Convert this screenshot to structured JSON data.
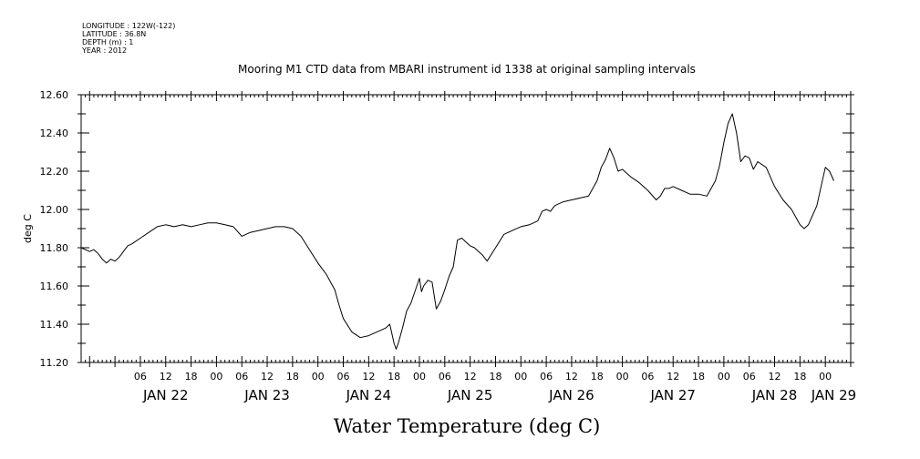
{
  "header": {
    "meta_lines": [
      "LONGITUDE : 122W(-122)",
      "LATITUDE : 36.8N",
      "DEPTH (m) : 1",
      "YEAR : 2012"
    ],
    "title": "Mooring M1 CTD data from MBARI instrument id 1338 at original sampling intervals"
  },
  "chart_data": {
    "type": "line",
    "title": "Water Temperature (deg C)",
    "subtitle": "Mooring M1 CTD data from MBARI instrument id 1338 at original sampling intervals",
    "xlabel": "",
    "ylabel": "deg C",
    "ylim": [
      11.2,
      12.6
    ],
    "yticks": [
      11.2,
      11.4,
      11.6,
      11.8,
      12.0,
      12.2,
      12.4,
      12.6
    ],
    "ytick_labels": [
      "11.20",
      "11.40",
      "11.60",
      "11.80",
      "12.00",
      "12.20",
      "12.40",
      "12.60"
    ],
    "x_unit": "hours since JAN 22 00:00 (2012)",
    "xlim": [
      -8,
      174
    ],
    "hour_ticks": [
      {
        "h": 6,
        "label": "06"
      },
      {
        "h": 12,
        "label": "12"
      },
      {
        "h": 18,
        "label": "18"
      },
      {
        "h": 24,
        "label": "00"
      },
      {
        "h": 30,
        "label": "06"
      },
      {
        "h": 36,
        "label": "12"
      },
      {
        "h": 42,
        "label": "18"
      },
      {
        "h": 48,
        "label": "00"
      },
      {
        "h": 54,
        "label": "06"
      },
      {
        "h": 60,
        "label": "12"
      },
      {
        "h": 66,
        "label": "18"
      },
      {
        "h": 72,
        "label": "00"
      },
      {
        "h": 78,
        "label": "06"
      },
      {
        "h": 84,
        "label": "12"
      },
      {
        "h": 90,
        "label": "18"
      },
      {
        "h": 96,
        "label": "00"
      },
      {
        "h": 102,
        "label": "06"
      },
      {
        "h": 108,
        "label": "12"
      },
      {
        "h": 114,
        "label": "18"
      },
      {
        "h": 120,
        "label": "00"
      },
      {
        "h": 126,
        "label": "06"
      },
      {
        "h": 132,
        "label": "12"
      },
      {
        "h": 138,
        "label": "18"
      },
      {
        "h": 144,
        "label": "00"
      },
      {
        "h": 150,
        "label": "06"
      },
      {
        "h": 156,
        "label": "12"
      },
      {
        "h": 162,
        "label": "18"
      },
      {
        "h": 168,
        "label": "00"
      }
    ],
    "day_labels": [
      {
        "h": 12,
        "label": "JAN 22"
      },
      {
        "h": 36,
        "label": "JAN 23"
      },
      {
        "h": 60,
        "label": "JAN 24"
      },
      {
        "h": 84,
        "label": "JAN 25"
      },
      {
        "h": 108,
        "label": "JAN 26"
      },
      {
        "h": 132,
        "label": "JAN 27"
      },
      {
        "h": 156,
        "label": "JAN 28"
      },
      {
        "h": 170,
        "label": "JAN 29"
      }
    ],
    "series": [
      {
        "x": [
          -8,
          -6,
          -5,
          -4,
          -3,
          -2,
          -1,
          0,
          1,
          2,
          3,
          4,
          6,
          8,
          10,
          12,
          14,
          16,
          18,
          20,
          22,
          24,
          26,
          28,
          30,
          32,
          34,
          36,
          38,
          40,
          42,
          44,
          46,
          48,
          50,
          52,
          53,
          54,
          56,
          58,
          60,
          62,
          64,
          65,
          66,
          66.5,
          67,
          68,
          69,
          70,
          72,
          72.5,
          73,
          74,
          75,
          76,
          77,
          78,
          79,
          80,
          81,
          82,
          83,
          84,
          85,
          86,
          87,
          88,
          90,
          92,
          94,
          96,
          98,
          100,
          101,
          102,
          103,
          104,
          106,
          108,
          110,
          112,
          114,
          115,
          116,
          117,
          118,
          119,
          120,
          121,
          122,
          124,
          126,
          128,
          129,
          130,
          131,
          132,
          134,
          136,
          138,
          140,
          142,
          143,
          144,
          145,
          146,
          147,
          148,
          149,
          150,
          151,
          152,
          154,
          156,
          158,
          160,
          162,
          163,
          164,
          166,
          167,
          168,
          169,
          170
        ],
        "y": [
          11.8,
          11.78,
          11.79,
          11.77,
          11.74,
          11.72,
          11.74,
          11.73,
          11.75,
          11.78,
          11.81,
          11.82,
          11.85,
          11.88,
          11.91,
          11.92,
          11.91,
          11.92,
          11.91,
          11.92,
          11.93,
          11.93,
          11.92,
          11.91,
          11.86,
          11.88,
          11.89,
          11.9,
          11.91,
          11.91,
          11.9,
          11.86,
          11.79,
          11.72,
          11.66,
          11.58,
          11.5,
          11.43,
          11.36,
          11.33,
          11.34,
          11.36,
          11.38,
          11.4,
          11.3,
          11.27,
          11.3,
          11.38,
          11.47,
          11.51,
          11.64,
          11.57,
          11.6,
          11.63,
          11.62,
          11.48,
          11.52,
          11.58,
          11.65,
          11.7,
          11.84,
          11.85,
          11.83,
          11.81,
          11.8,
          11.78,
          11.76,
          11.73,
          11.8,
          11.87,
          11.89,
          11.91,
          11.92,
          11.94,
          11.99,
          12.0,
          11.99,
          12.02,
          12.04,
          12.05,
          12.06,
          12.07,
          12.15,
          12.22,
          12.26,
          12.32,
          12.27,
          12.2,
          12.21,
          12.19,
          12.17,
          12.14,
          12.1,
          12.05,
          12.07,
          12.11,
          12.11,
          12.12,
          12.1,
          12.08,
          12.08,
          12.07,
          12.15,
          12.23,
          12.35,
          12.45,
          12.5,
          12.4,
          12.25,
          12.28,
          12.27,
          12.21,
          12.25,
          12.22,
          12.12,
          12.05,
          12.0,
          11.92,
          11.9,
          11.92,
          12.02,
          12.12,
          12.22,
          12.2,
          12.15
        ]
      }
    ],
    "grid": false,
    "line_color": "#000000"
  }
}
